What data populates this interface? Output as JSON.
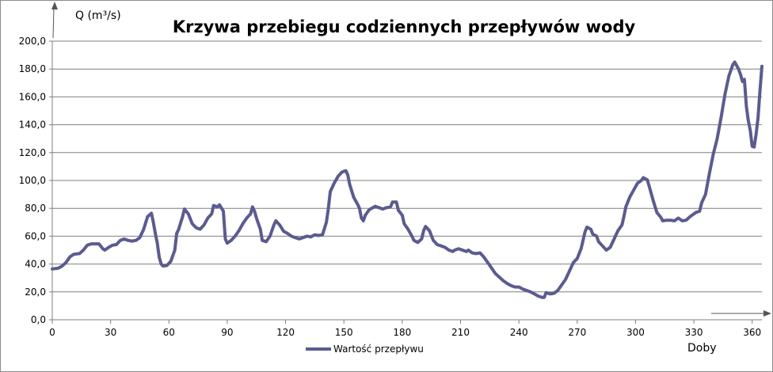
{
  "chart_data": {
    "type": "line",
    "title": "Krzywa przebiegu codziennych przepływów wody",
    "ylabel": "Q (m³/s)",
    "xlabel": "Doby",
    "xlim": [
      0,
      365
    ],
    "ylim": [
      0,
      200
    ],
    "x_ticks": [
      0,
      30,
      60,
      90,
      120,
      150,
      180,
      210,
      240,
      270,
      300,
      330,
      360
    ],
    "y_ticks": [
      "0,0",
      "20,0",
      "40,0",
      "60,0",
      "80,0",
      "100,0",
      "120,0",
      "140,0",
      "160,0",
      "180,0",
      "200,0"
    ],
    "grid": true,
    "legend_position": "bottom",
    "line_color": "#5b5b8f",
    "series": [
      {
        "name": "Wartość przepływu",
        "points": [
          [
            0,
            36.5
          ],
          [
            3,
            37
          ],
          [
            5,
            38.5
          ],
          [
            7,
            41
          ],
          [
            9,
            45
          ],
          [
            11,
            47
          ],
          [
            14,
            47.5
          ],
          [
            16,
            50
          ],
          [
            18,
            53.5
          ],
          [
            20,
            54.5
          ],
          [
            24,
            54.5
          ],
          [
            26,
            51
          ],
          [
            27,
            50
          ],
          [
            29,
            52
          ],
          [
            31,
            53.5
          ],
          [
            33,
            54
          ],
          [
            35,
            57
          ],
          [
            37,
            58
          ],
          [
            39,
            57
          ],
          [
            41,
            56.5
          ],
          [
            43,
            57
          ],
          [
            45,
            59
          ],
          [
            47,
            65
          ],
          [
            49,
            74
          ],
          [
            51,
            76.5
          ],
          [
            52,
            70
          ],
          [
            53,
            62
          ],
          [
            54,
            55
          ],
          [
            55,
            45
          ],
          [
            56,
            40
          ],
          [
            57,
            38.5
          ],
          [
            59,
            39
          ],
          [
            61,
            42
          ],
          [
            63,
            50
          ],
          [
            64,
            62
          ],
          [
            65,
            65
          ],
          [
            67,
            74
          ],
          [
            68,
            79.5
          ],
          [
            70,
            76
          ],
          [
            72,
            69
          ],
          [
            74,
            66
          ],
          [
            76,
            65
          ],
          [
            78,
            68
          ],
          [
            80,
            73
          ],
          [
            82,
            76
          ],
          [
            83,
            82
          ],
          [
            85,
            81
          ],
          [
            86,
            82.5
          ],
          [
            88,
            78
          ],
          [
            89,
            58
          ],
          [
            90,
            55
          ],
          [
            92,
            57
          ],
          [
            94,
            60
          ],
          [
            96,
            64
          ],
          [
            98,
            69
          ],
          [
            100,
            73
          ],
          [
            102,
            76
          ],
          [
            103,
            81
          ],
          [
            104,
            78
          ],
          [
            105,
            73
          ],
          [
            107,
            65
          ],
          [
            108,
            57
          ],
          [
            110,
            56
          ],
          [
            112,
            60
          ],
          [
            114,
            68
          ],
          [
            115,
            71
          ],
          [
            117,
            68
          ],
          [
            119,
            63.5
          ],
          [
            121,
            62
          ],
          [
            123,
            60
          ],
          [
            125,
            59
          ],
          [
            127,
            58
          ],
          [
            129,
            59
          ],
          [
            131,
            60
          ],
          [
            133,
            59.5
          ],
          [
            135,
            61
          ],
          [
            137,
            60.5
          ],
          [
            139,
            61
          ],
          [
            141,
            70
          ],
          [
            142,
            80
          ],
          [
            143,
            92
          ],
          [
            145,
            98
          ],
          [
            147,
            103
          ],
          [
            149,
            106
          ],
          [
            151,
            107
          ],
          [
            152,
            104
          ],
          [
            153,
            97
          ],
          [
            155,
            88
          ],
          [
            157,
            83
          ],
          [
            158,
            80
          ],
          [
            159,
            73
          ],
          [
            160,
            71
          ],
          [
            161,
            75
          ],
          [
            163,
            79
          ],
          [
            165,
            80.5
          ],
          [
            166,
            81.5
          ],
          [
            168,
            80.5
          ],
          [
            170,
            79.5
          ],
          [
            172,
            80.5
          ],
          [
            174,
            81
          ],
          [
            175,
            84.5
          ],
          [
            177,
            84.5
          ],
          [
            178,
            78.5
          ],
          [
            180,
            75
          ],
          [
            181,
            69
          ],
          [
            183,
            65
          ],
          [
            185,
            60
          ],
          [
            186,
            57
          ],
          [
            188,
            55.5
          ],
          [
            190,
            58
          ],
          [
            191,
            64
          ],
          [
            192,
            67
          ],
          [
            194,
            64
          ],
          [
            196,
            57
          ],
          [
            198,
            54
          ],
          [
            200,
            53
          ],
          [
            202,
            52
          ],
          [
            204,
            50
          ],
          [
            206,
            49
          ],
          [
            207,
            50
          ],
          [
            209,
            51
          ],
          [
            211,
            50
          ],
          [
            213,
            49
          ],
          [
            214,
            50
          ],
          [
            216,
            48
          ],
          [
            218,
            47.5
          ],
          [
            220,
            48
          ],
          [
            222,
            45
          ],
          [
            224,
            41
          ],
          [
            226,
            37
          ],
          [
            228,
            33
          ],
          [
            230,
            30.5
          ],
          [
            232,
            28
          ],
          [
            234,
            26
          ],
          [
            236,
            24.5
          ],
          [
            238,
            23.5
          ],
          [
            240,
            23.5
          ],
          [
            242,
            22
          ],
          [
            244,
            21
          ],
          [
            246,
            20
          ],
          [
            248,
            18.5
          ],
          [
            250,
            17
          ],
          [
            252,
            16
          ],
          [
            253,
            16
          ],
          [
            254,
            19.5
          ],
          [
            256,
            18.5
          ],
          [
            258,
            19
          ],
          [
            260,
            21
          ],
          [
            262,
            25
          ],
          [
            264,
            29
          ],
          [
            266,
            35
          ],
          [
            268,
            41
          ],
          [
            270,
            44
          ],
          [
            272,
            51
          ],
          [
            273,
            57
          ],
          [
            274,
            63
          ],
          [
            275,
            66.5
          ],
          [
            277,
            65
          ],
          [
            278,
            61.5
          ],
          [
            280,
            60
          ],
          [
            281,
            56
          ],
          [
            283,
            53
          ],
          [
            285,
            50
          ],
          [
            287,
            52
          ],
          [
            289,
            58
          ],
          [
            291,
            64
          ],
          [
            293,
            68
          ],
          [
            294,
            74
          ],
          [
            295,
            81
          ],
          [
            297,
            88
          ],
          [
            299,
            93
          ],
          [
            301,
            98
          ],
          [
            303,
            100
          ],
          [
            304,
            102
          ],
          [
            306,
            100.5
          ],
          [
            307,
            96
          ],
          [
            309,
            86
          ],
          [
            311,
            77
          ],
          [
            313,
            73.5
          ],
          [
            314,
            71
          ],
          [
            316,
            71.5
          ],
          [
            318,
            71.5
          ],
          [
            320,
            71
          ],
          [
            322,
            73
          ],
          [
            324,
            71
          ],
          [
            326,
            71.5
          ],
          [
            328,
            74
          ],
          [
            331,
            77
          ],
          [
            333,
            78
          ],
          [
            334,
            84
          ],
          [
            336,
            90
          ],
          [
            338,
            105
          ],
          [
            340,
            119
          ],
          [
            342,
            130
          ],
          [
            344,
            145
          ],
          [
            346,
            162
          ],
          [
            348,
            175
          ],
          [
            350,
            183
          ],
          [
            351,
            185
          ],
          [
            353,
            180
          ],
          [
            354,
            176
          ],
          [
            355,
            171
          ],
          [
            356,
            172.5
          ],
          [
            357,
            153
          ],
          [
            358,
            143
          ],
          [
            359,
            136
          ],
          [
            360,
            124.5
          ],
          [
            361,
            124
          ],
          [
            362,
            133
          ],
          [
            363,
            145
          ],
          [
            364,
            164
          ],
          [
            365,
            182
          ]
        ]
      }
    ]
  }
}
